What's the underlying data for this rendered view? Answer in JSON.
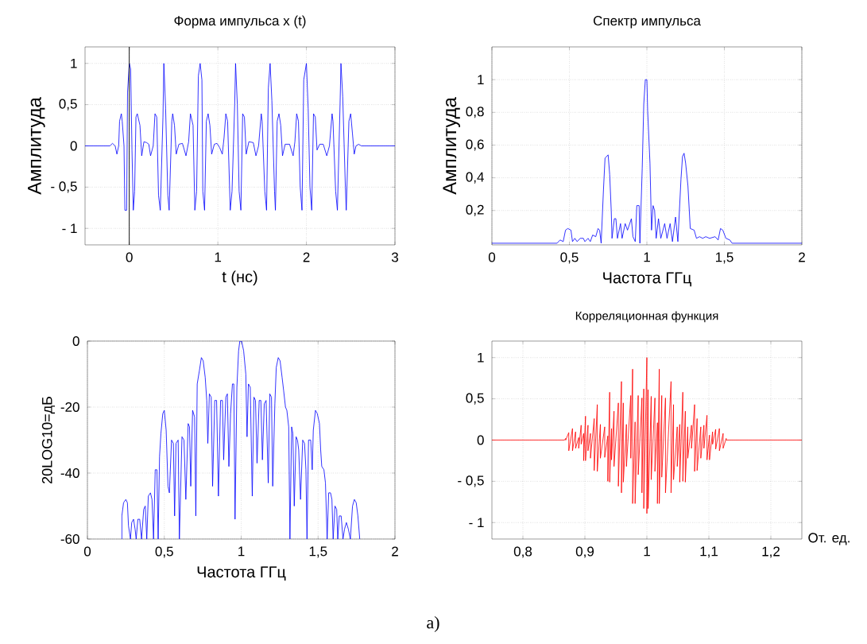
{
  "chart_data": [
    {
      "type": "line",
      "title": "Форма импульса x (t)",
      "xlabel": "t (нс)",
      "ylabel": "Амплитуда",
      "xlim": [
        -0.5,
        3
      ],
      "ylim": [
        -1.2,
        1.2
      ],
      "xticks": [
        0,
        1,
        2,
        3
      ],
      "yticks": [
        {
          "value": -1,
          "label": "- 1"
        },
        {
          "value": -0.5,
          "label": "- 0,5"
        },
        0,
        {
          "value": 0.5,
          "label": "0,5"
        },
        1
      ],
      "grid": true,
      "ref_lines": [
        {
          "axis": "x",
          "value": 0,
          "color": "#000000"
        }
      ],
      "x": [
        -0.5,
        -0.22,
        -0.19,
        -0.16,
        -0.14,
        -0.12,
        -0.11,
        -0.09,
        -0.08,
        -0.06,
        -0.05,
        -0.03,
        -0.02,
        0.0,
        0.015,
        0.03,
        0.045,
        0.06,
        0.075,
        0.09,
        0.12,
        0.14,
        0.165,
        0.195,
        0.22,
        0.24,
        0.27,
        0.29,
        0.31,
        0.33,
        0.35,
        0.38,
        0.39,
        0.41,
        0.435,
        0.45,
        0.48,
        0.49,
        0.51,
        0.53,
        0.56,
        0.6,
        0.64,
        0.67,
        0.69,
        0.72,
        0.74,
        0.76,
        0.78,
        0.8,
        0.82,
        0.83,
        0.85,
        0.87,
        0.89,
        0.91,
        0.93,
        0.96,
        0.99,
        1.02,
        1.05,
        1.07,
        1.09,
        1.11,
        1.14,
        1.16,
        1.19,
        1.2,
        1.22,
        1.24,
        1.26,
        1.28,
        1.3,
        1.32,
        1.35,
        1.4,
        1.43,
        1.46,
        1.49,
        1.5,
        1.53,
        1.55,
        1.57,
        1.59,
        1.61,
        1.64,
        1.65,
        1.67,
        1.69,
        1.71,
        1.73,
        1.76,
        1.81,
        1.85,
        1.87,
        1.89,
        1.91,
        1.93,
        1.95,
        1.97,
        2.0,
        2.02,
        2.04,
        2.06,
        2.08,
        2.1,
        2.12,
        2.15,
        2.19,
        2.23,
        2.26,
        2.29,
        2.3,
        2.33,
        2.35,
        2.38,
        2.39,
        2.41,
        2.44,
        2.45,
        2.48,
        2.5,
        2.52,
        2.54,
        2.56,
        2.59,
        2.62,
        3.0
      ],
      "series": [
        {
          "color": "#0000ff",
          "values": [
            0,
            0,
            0.03,
            0,
            -0.1,
            0,
            0.3,
            0.39,
            0.3,
            0,
            -0.78,
            -0.78,
            0.65,
            1.0,
            0.93,
            -0.05,
            -0.78,
            -0.55,
            0.35,
            0.39,
            0.25,
            -0.12,
            0.05,
            0.04,
            0.02,
            -0.12,
            0,
            0.39,
            0.35,
            -0.6,
            -0.78,
            0.35,
            1.0,
            0.45,
            -0.6,
            -0.78,
            0.3,
            0.39,
            0.25,
            -0.1,
            0.02,
            0.03,
            -0.12,
            0.05,
            0.39,
            0.25,
            -0.78,
            -0.55,
            0.85,
            1.0,
            0.8,
            -0.55,
            -0.78,
            0.3,
            0.39,
            0.25,
            -0.1,
            0.02,
            0.03,
            -0.02,
            -0.1,
            0.1,
            0.39,
            0.3,
            -0.78,
            -0.55,
            0.5,
            1.0,
            0.5,
            -0.55,
            -0.78,
            0.39,
            0.35,
            -0.1,
            0.05,
            0.04,
            -0.12,
            0,
            0.39,
            0.3,
            -0.55,
            -0.78,
            0.7,
            1.0,
            0.55,
            -0.55,
            -0.78,
            0.3,
            0.39,
            0.25,
            -0.12,
            0.02,
            0.02,
            -0.12,
            0.05,
            0.39,
            0.3,
            -0.5,
            -0.78,
            0.8,
            1.0,
            0.45,
            -0.5,
            -0.78,
            0.39,
            0.35,
            -0.05,
            0.02,
            0.02,
            -0.12,
            0,
            0.39,
            0.3,
            -0.55,
            -0.78,
            0.5,
            1.0,
            0.6,
            -0.5,
            -0.78,
            0.3,
            0.39,
            0.15,
            -0.1,
            0,
            0.02,
            0,
            0
          ]
        }
      ]
    },
    {
      "type": "line",
      "title": "Спектр импульса",
      "xlabel": "Частота ГГц",
      "ylabel": "Амплитуда",
      "xlim": [
        0,
        2
      ],
      "ylim": [
        -0.01,
        1.2
      ],
      "xticks": [
        0,
        {
          "value": 0.5,
          "label": "0,5"
        },
        1,
        {
          "value": 1.5,
          "label": "1,5"
        },
        2
      ],
      "yticks": [
        {
          "value": 0.2,
          "label": "0,2"
        },
        {
          "value": 0.4,
          "label": "0,4"
        },
        {
          "value": 0.6,
          "label": "0,6"
        },
        {
          "value": 0.8,
          "label": "0,8"
        },
        1
      ],
      "grid": true,
      "x": [
        0,
        0.42,
        0.44,
        0.46,
        0.475,
        0.49,
        0.51,
        0.52,
        0.535,
        0.55,
        0.57,
        0.59,
        0.6,
        0.62,
        0.635,
        0.65,
        0.67,
        0.685,
        0.695,
        0.705,
        0.72,
        0.73,
        0.75,
        0.76,
        0.77,
        0.775,
        0.79,
        0.8,
        0.81,
        0.83,
        0.84,
        0.86,
        0.875,
        0.9,
        0.91,
        0.925,
        0.935,
        0.95,
        0.955,
        0.97,
        0.98,
        0.99,
        1.0,
        1.005,
        1.02,
        1.03,
        1.04,
        1.05,
        1.06,
        1.075,
        1.09,
        1.115,
        1.13,
        1.15,
        1.165,
        1.185,
        1.2,
        1.22,
        1.23,
        1.24,
        1.25,
        1.265,
        1.28,
        1.305,
        1.32,
        1.34,
        1.36,
        1.38,
        1.405,
        1.44,
        1.46,
        1.475,
        1.49,
        1.51,
        1.535,
        1.55,
        2.0
      ],
      "series": [
        {
          "color": "#0000ff",
          "values": [
            0,
            0,
            0.02,
            0.01,
            0.08,
            0.09,
            0.08,
            0.01,
            0.03,
            0.01,
            0.03,
            0.03,
            0.01,
            0.03,
            0.01,
            0.05,
            0.04,
            0.09,
            0.08,
            0,
            0.33,
            0.52,
            0.54,
            0.42,
            0.2,
            0.03,
            0.15,
            0.15,
            0.03,
            0.12,
            0.03,
            0.12,
            0.08,
            0.15,
            0.04,
            0.01,
            0.23,
            0.23,
            0,
            0.46,
            0.85,
            1.0,
            1.0,
            0.81,
            0.49,
            0.08,
            0.23,
            0.2,
            0.03,
            0.15,
            0.03,
            0.12,
            0.03,
            0.12,
            0.01,
            0.16,
            0.01,
            0.39,
            0.53,
            0.55,
            0.49,
            0.35,
            0.09,
            0.08,
            0.03,
            0.04,
            0.03,
            0.04,
            0.03,
            0.04,
            0.02,
            0.09,
            0.08,
            0.03,
            0.02,
            0,
            0
          ]
        }
      ]
    },
    {
      "type": "line",
      "xlabel": "Частота ГГц",
      "ylabel": "20LOG10=дБ",
      "xlim": [
        0,
        2
      ],
      "ylim": [
        -60,
        0
      ],
      "xticks": [
        0,
        {
          "value": 0.5,
          "label": "0,5"
        },
        1,
        {
          "value": 1.5,
          "label": "1,5"
        },
        2
      ],
      "yticks": [
        -60,
        -40,
        -20,
        0
      ],
      "grid": true,
      "x": [
        0.224,
        0.224,
        0.235,
        0.25,
        0.26,
        0.267,
        0.28,
        0.288,
        0.3,
        0.31,
        0.317,
        0.328,
        0.34,
        0.352,
        0.366,
        0.376,
        0.386,
        0.396,
        0.41,
        0.42,
        0.43,
        0.441,
        0.452,
        0.46,
        0.469,
        0.478,
        0.49,
        0.5,
        0.512,
        0.524,
        0.533,
        0.547,
        0.559,
        0.567,
        0.576,
        0.59,
        0.598,
        0.615,
        0.628,
        0.64,
        0.655,
        0.664,
        0.672,
        0.684,
        0.697,
        0.705,
        0.714,
        0.728,
        0.741,
        0.753,
        0.766,
        0.776,
        0.783,
        0.793,
        0.805,
        0.814,
        0.828,
        0.84,
        0.852,
        0.866,
        0.878,
        0.886,
        0.9,
        0.91,
        0.92,
        0.931,
        0.943,
        0.952,
        0.96,
        0.972,
        0.983,
        0.991,
        1.003,
        1.016,
        1.03,
        1.038,
        1.047,
        1.059,
        1.072,
        1.083,
        1.093,
        1.103,
        1.117,
        1.128,
        1.138,
        1.15,
        1.162,
        1.176,
        1.186,
        1.197,
        1.205,
        1.219,
        1.228,
        1.241,
        1.253,
        1.266,
        1.276,
        1.288,
        1.297,
        1.309,
        1.317,
        1.328,
        1.336,
        1.345,
        1.357,
        1.366,
        1.374,
        1.386,
        1.4,
        1.412,
        1.421,
        1.428,
        1.438,
        1.452,
        1.462,
        1.469,
        1.483,
        1.495,
        1.509,
        1.517,
        1.524,
        1.538,
        1.548,
        1.559,
        1.569,
        1.581,
        1.59,
        1.598,
        1.61,
        1.621,
        1.628,
        1.638,
        1.65,
        1.662,
        1.672,
        1.684,
        1.697,
        1.71,
        1.724,
        1.736,
        1.748,
        1.759,
        1.771
      ],
      "series": [
        {
          "color": "#0000ff",
          "values": [
            -60,
            -53,
            -49,
            -48,
            -49,
            -56,
            -60,
            -55,
            -54,
            -57,
            -60,
            -54,
            -54,
            -60,
            -51,
            -50,
            -60,
            -47,
            -46,
            -48,
            -60,
            -39,
            -39,
            -60,
            -35,
            -28,
            -22,
            -21,
            -27,
            -44,
            -46,
            -30,
            -31,
            -53,
            -31,
            -30,
            -60,
            -29,
            -30,
            -48,
            -25,
            -26,
            -44,
            -21,
            -23,
            -53,
            -13,
            -9,
            -5,
            -6,
            -11,
            -18,
            -31,
            -16,
            -17,
            -44,
            -18,
            -18,
            -47,
            -18,
            -18,
            -36,
            -17,
            -16,
            -38,
            -22,
            -13,
            -13,
            -54,
            -14,
            -3,
            0,
            0,
            -3,
            -10,
            -29,
            -13,
            -14,
            -47,
            -17,
            -18,
            -37,
            -18,
            -18,
            -36,
            -19,
            -18,
            -43,
            -16,
            -17,
            -44,
            -19,
            -8,
            -5,
            -6,
            -11,
            -15,
            -20,
            -21,
            -26,
            -60,
            -26,
            -28,
            -50,
            -29,
            -30,
            -33,
            -48,
            -30,
            -31,
            -39,
            -60,
            -30,
            -30,
            -39,
            -27,
            -21,
            -22,
            -25,
            -33,
            -38,
            -39,
            -43,
            -60,
            -46,
            -46,
            -48,
            -60,
            -50,
            -51,
            -60,
            -53,
            -53,
            -60,
            -57,
            -55,
            -57,
            -60,
            -50,
            -48,
            -49,
            -53,
            -60
          ]
        }
      ]
    },
    {
      "type": "line",
      "title": "Корреляционная функция",
      "xlabel": "От. ед.",
      "xlim": [
        0.75,
        1.25
      ],
      "ylim": [
        -1.2,
        1.2
      ],
      "xticks": [
        {
          "value": 0.8,
          "label": "0,8"
        },
        {
          "value": 0.9,
          "label": "0,9"
        },
        1,
        {
          "value": 1.1,
          "label": "1,1"
        },
        {
          "value": 1.2,
          "label": "1,2"
        }
      ],
      "yticks": [
        {
          "value": -1,
          "label": "- 1"
        },
        {
          "value": -0.5,
          "label": "- 0,5"
        },
        0,
        {
          "value": 0.5,
          "label": "0,5"
        },
        1
      ],
      "grid": true,
      "annotations": [
        "а)"
      ],
      "x": [
        0.75,
        0.867,
        0.869,
        0.869,
        0.874,
        0.874,
        0.88,
        0.88,
        0.885,
        0.885,
        0.89,
        0.89,
        0.894,
        0.894,
        0.898,
        0.898,
        0.901,
        0.901,
        0.905,
        0.905,
        0.909,
        0.909,
        0.915,
        0.915,
        0.92,
        0.92,
        0.925,
        0.925,
        0.932,
        0.932,
        0.937,
        0.937,
        0.94,
        0.94,
        0.943,
        0.943,
        0.947,
        0.947,
        0.954,
        0.954,
        0.959,
        0.959,
        0.962,
        0.962,
        0.967,
        0.967,
        0.974,
        0.974,
        0.977,
        0.977,
        0.981,
        0.981,
        0.986,
        0.986,
        0.992,
        0.992,
        0.995,
        0.995,
        1.0,
        1.0,
        1.002,
        1.002,
        1.007,
        1.007,
        1.013,
        1.013,
        1.017,
        1.017,
        1.02,
        1.02,
        1.024,
        1.024,
        1.03,
        1.03,
        1.039,
        1.039,
        1.043,
        1.043,
        1.049,
        1.049,
        1.053,
        1.053,
        1.058,
        1.058,
        1.062,
        1.062,
        1.066,
        1.066,
        1.072,
        1.072,
        1.077,
        1.077,
        1.081,
        1.081,
        1.087,
        1.087,
        1.092,
        1.092,
        1.097,
        1.097,
        1.101,
        1.101,
        1.106,
        1.106,
        1.111,
        1.111,
        1.117,
        1.117,
        1.123,
        1.123,
        1.128,
        1.128,
        1.13,
        1.25
      ],
      "series": [
        {
          "color": "#ff0000",
          "values": [
            0,
            0,
            0.02,
            0,
            0.09,
            -0.13,
            0.14,
            -0.13,
            0.1,
            -0.1,
            0.03,
            -0.1,
            0.18,
            -0.05,
            0.08,
            -0.25,
            0.29,
            -0.25,
            0.18,
            -0.13,
            0.08,
            -0.22,
            0.26,
            -0.37,
            0.43,
            -0.38,
            0.19,
            -0.22,
            0.16,
            -0.21,
            0.05,
            -0.5,
            0.58,
            -0.51,
            0.14,
            -0.24,
            0.35,
            -0.32,
            0.45,
            -0.56,
            0.71,
            -0.64,
            0.45,
            -0.51,
            0.19,
            -0.32,
            0.54,
            -0.22,
            0.86,
            -0.77,
            0.22,
            -0.77,
            0.54,
            -0.42,
            0.51,
            -0.64,
            0.62,
            -0.83,
            1.0,
            -0.89,
            0.61,
            -0.83,
            0.53,
            -0.48,
            0.51,
            -0.38,
            0.21,
            -0.77,
            0.86,
            -0.77,
            0.54,
            -0.45,
            0.51,
            -0.64,
            0.71,
            -0.64,
            0.43,
            -0.48,
            0.16,
            -0.32,
            0.19,
            -0.51,
            0.58,
            -0.5,
            0.35,
            -0.51,
            0.16,
            -0.22,
            0.18,
            -0.1,
            0.43,
            -0.38,
            0.26,
            -0.37,
            0.16,
            -0.22,
            0.18,
            -0.1,
            0.3,
            -0.24,
            0.06,
            -0.24,
            0.1,
            -0.05,
            0.13,
            -0.11,
            0.14,
            -0.13,
            0.08,
            -0.1,
            0.02,
            0,
            0,
            0
          ]
        }
      ]
    }
  ]
}
